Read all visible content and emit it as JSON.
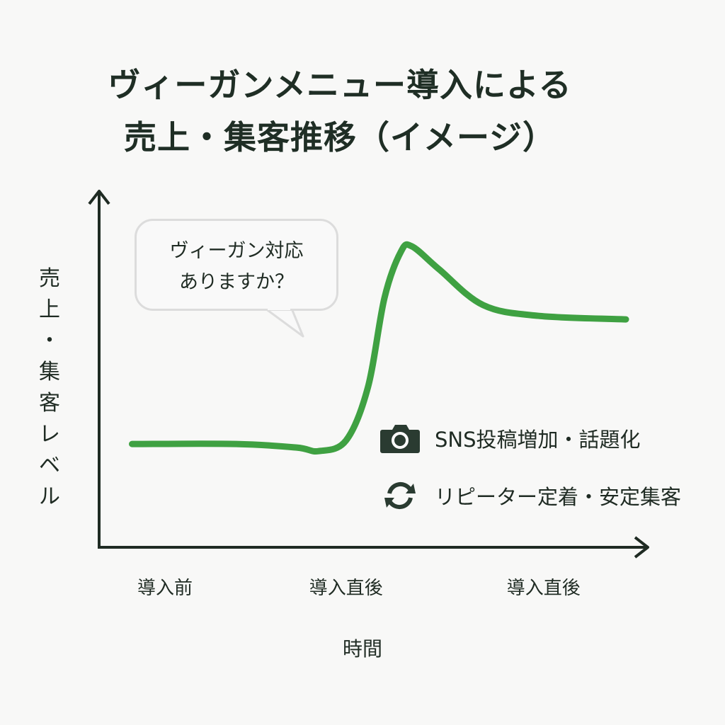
{
  "title_lines": [
    "ヴィーガンメニュー導入による",
    "売上・集客推移（イメージ）"
  ],
  "chart_data": {
    "type": "line",
    "title": "ヴィーガンメニュー導入による売上・集客推移（イメージ）",
    "xlabel": "時間",
    "ylabel": "売上・集客レベル",
    "ylabel_chars": [
      "売",
      "上",
      "・",
      "集",
      "客",
      "レ",
      "ベ",
      "ル"
    ],
    "tick_labels": [
      "導入前",
      "導入直後",
      "導入直後"
    ],
    "tick_positions": [
      12,
      45,
      81
    ],
    "xlim": [
      0,
      100
    ],
    "ylim": [
      0,
      100
    ],
    "grid": false,
    "series": [
      {
        "color": "#3fa142",
        "points": [
          [
            6,
            29
          ],
          [
            25,
            29
          ],
          [
            36,
            28
          ],
          [
            40,
            27
          ],
          [
            45,
            30
          ],
          [
            49,
            45
          ],
          [
            52,
            70
          ],
          [
            55,
            83
          ],
          [
            57,
            84.5
          ],
          [
            62,
            78
          ],
          [
            70,
            68
          ],
          [
            80,
            65
          ],
          [
            96,
            64
          ]
        ]
      }
    ],
    "annotation": {
      "lines": [
        "ヴィーガン対応",
        "ありますか？"
      ]
    },
    "legend": [
      {
        "icon": "camera-icon",
        "label": "SNS投稿増加・話題化"
      },
      {
        "icon": "refresh-icon",
        "label": "リピーター定着・安定集客"
      }
    ]
  },
  "colors": {
    "line": "#3fa142",
    "axis": "#1f2b23",
    "icon": "#2a3b31",
    "bubble_border": "#dcdcdc"
  }
}
